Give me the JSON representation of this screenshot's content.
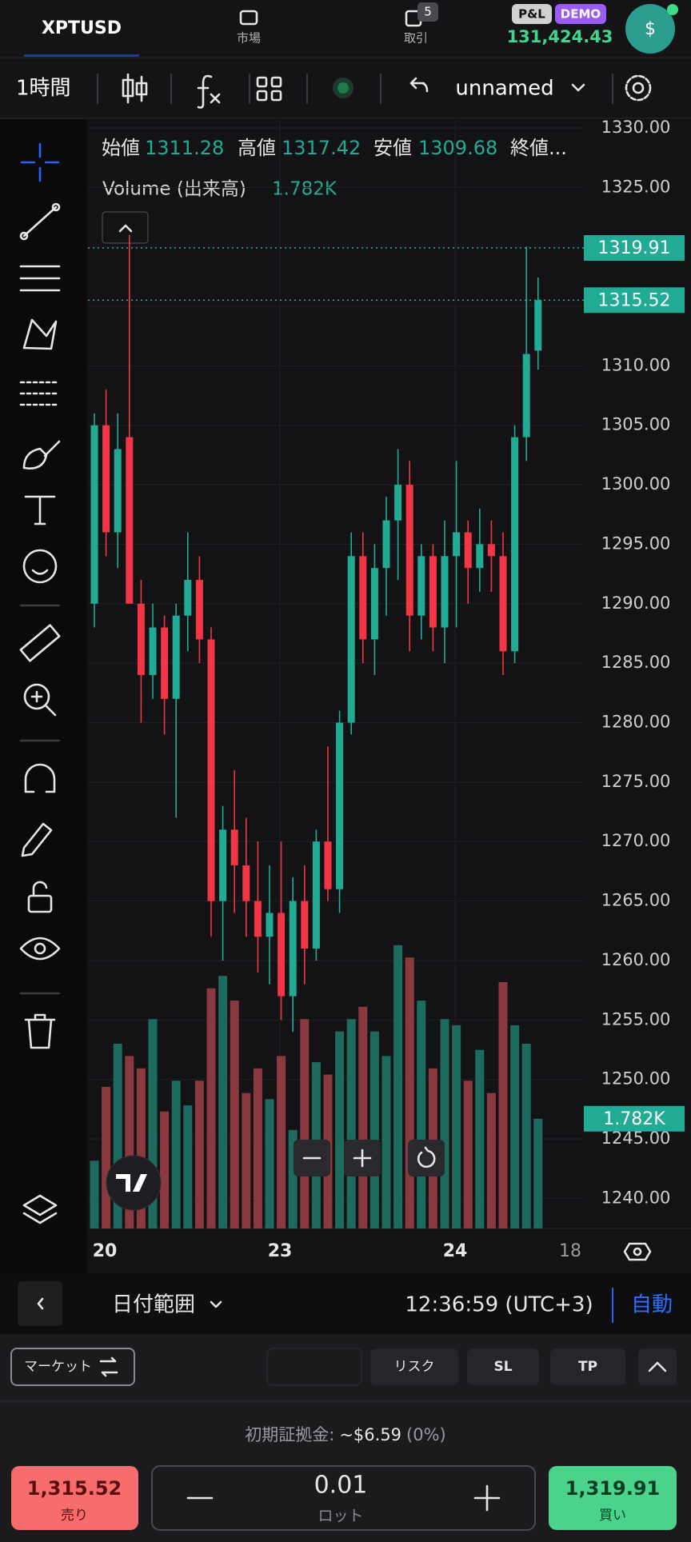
{
  "header": {
    "symbol": "XPTUSD",
    "market": "市場",
    "trade": "取引",
    "trade_badge": 5,
    "pl": "P&L",
    "demo": "DEMO",
    "balance": "131,424.43",
    "avatar": "$"
  },
  "toolbar": {
    "interval": "1時間",
    "layout": "unnamed"
  },
  "chart_data": {
    "type": "candlestick",
    "ohlc_labels": [
      "始値",
      "高値",
      "安値",
      "終値..."
    ],
    "ohlc_values": [
      1311.28,
      1317.42,
      1309.68
    ],
    "volume_label": "Volume (出来高)",
    "volume_value": 1.782,
    "volume_value_label": "1.782K",
    "ask": 1319.91,
    "bid": 1315.52,
    "up_color": "#22ab94",
    "down_color": "#f23645",
    "volume_up_color": "#1d6b5e",
    "volume_down_color": "#8a3a3e",
    "ylim": [
      1237.47,
      1330.67
    ],
    "yticks": [
      {
        "value": 1240,
        "label": "1240.00"
      },
      {
        "value": 1245,
        "label": "1245.00"
      },
      {
        "value": 1250,
        "label": "1250.00"
      },
      {
        "value": 1255,
        "label": "1255.00"
      },
      {
        "value": 1260,
        "label": "1260.00"
      },
      {
        "value": 1265,
        "label": "1265.00"
      },
      {
        "value": 1270,
        "label": "1270.00"
      },
      {
        "value": 1275,
        "label": "1275.00"
      },
      {
        "value": 1280,
        "label": "1280.00"
      },
      {
        "value": 1285,
        "label": "1285.00"
      },
      {
        "value": 1290,
        "label": "1290.00"
      },
      {
        "value": 1295,
        "label": "1295.00"
      },
      {
        "value": 1300,
        "label": "1300.00"
      },
      {
        "value": 1305,
        "label": "1305.00"
      },
      {
        "value": 1310,
        "label": "1310.00"
      },
      {
        "value": 1315,
        "label": "1315.00"
      },
      {
        "value": 1320,
        "label": "1320.00"
      },
      {
        "value": 1325,
        "label": "1325.00"
      },
      {
        "value": 1330,
        "label": "1330.00"
      }
    ],
    "volume_lim": [
      0,
      18
    ],
    "x_labels": [
      "20",
      "23",
      "24",
      "18"
    ],
    "candles": {
      "open": [
        1290,
        1305,
        1296,
        1304,
        1290,
        1284,
        1288,
        1282,
        1289,
        1292,
        1287,
        1265,
        1271,
        1268,
        1265,
        1262,
        1264,
        1257,
        1265,
        1261,
        1270,
        1266,
        1280,
        1294,
        1287,
        1293,
        1297,
        1300,
        1289,
        1294,
        1288,
        1294,
        1296,
        1293,
        1295,
        1294,
        1286,
        1304,
        1311.28
      ],
      "high": [
        1306,
        1308,
        1306,
        1321,
        1292,
        1290,
        1289,
        1290,
        1296,
        1294,
        1288,
        1273,
        1276,
        1272,
        1270,
        1268,
        1270,
        1267,
        1268,
        1271,
        1278,
        1281,
        1296,
        1296,
        1295,
        1299,
        1303,
        1302,
        1295,
        1295,
        1297,
        1302,
        1297,
        1298,
        1297,
        1296,
        1305,
        1320,
        1317.42
      ],
      "low": [
        1288,
        1294,
        1293,
        1290,
        1280,
        1282,
        1279,
        1272,
        1286,
        1285,
        1262,
        1260,
        1264,
        1262,
        1259,
        1258,
        1255,
        1254,
        1258,
        1260,
        1265,
        1264,
        1279,
        1285,
        1284,
        1289,
        1292,
        1286,
        1287,
        1286,
        1285,
        1288,
        1290,
        1291,
        1291,
        1284,
        1285,
        1302,
        1309.68
      ],
      "close": [
        1305,
        1296,
        1303,
        1290,
        1284,
        1288,
        1282,
        1289,
        1292,
        1287,
        1265,
        1271,
        1268,
        1265,
        1262,
        1264,
        1257,
        1265,
        1261,
        1270,
        1266,
        1280,
        1294,
        1287,
        1293,
        1297,
        1300,
        1289,
        1294,
        1288,
        1294,
        1296,
        1293,
        1295,
        1294,
        1286,
        1304,
        1311,
        1315.52
      ]
    },
    "volume": [
      1.1,
      2.3,
      3.0,
      2.8,
      2.6,
      3.4,
      1.9,
      2.4,
      2.0,
      2.4,
      3.9,
      4.1,
      3.7,
      2.2,
      2.6,
      2.1,
      2.8,
      1.6,
      3.4,
      2.7,
      2.5,
      3.2,
      3.4,
      3.6,
      3.2,
      2.8,
      4.6,
      4.4,
      3.7,
      2.6,
      3.4,
      3.3,
      2.4,
      2.9,
      2.2,
      4.0,
      3.3,
      3.0,
      1.782
    ]
  },
  "bottom_bar": {
    "date_range": "日付範囲",
    "time": "12:36:59 (UTC+3)",
    "auto": "自動"
  },
  "order": {
    "type": "マーケット",
    "risk": "リスク",
    "sl": "SL",
    "tp": "TP",
    "margin_label": "初期証拠金:",
    "margin": "~$6.59",
    "margin_pct": "(0%)",
    "sell_price": "1,315.52",
    "sell": "売り",
    "lot": "0.01",
    "lot_label": "ロット",
    "buy_price": "1,319.91",
    "buy": "買い"
  }
}
